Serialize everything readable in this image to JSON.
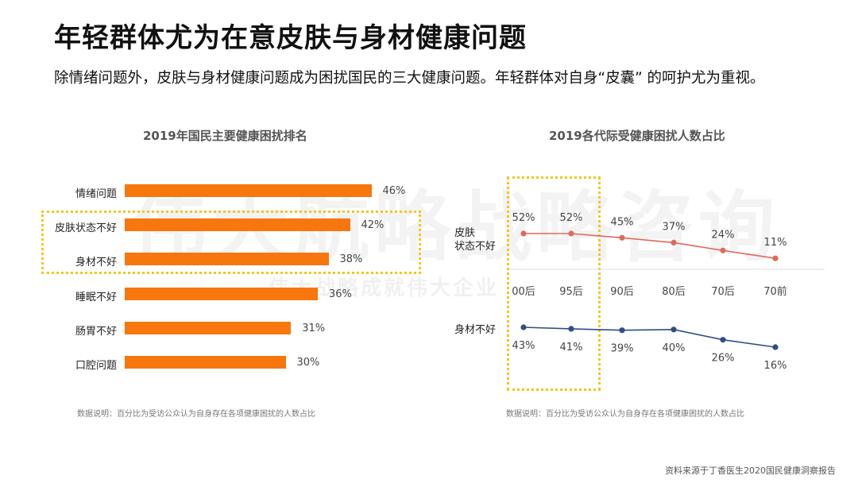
{
  "header": {
    "title": "年轻群体尤为在意皮肤与身材健康问题",
    "subtitle": "除情绪问题外，皮肤与身材健康问题成为困扰国民的三大健康问题。年轻群体对自身“皮囊” 的呵护尤为重视。"
  },
  "watermark": {
    "main": "伟大航略战略咨询",
    "sub": "伟大战略成就伟大企业"
  },
  "footer": {
    "source": "资料来源于丁香医生2020国民健康洞察报告"
  },
  "chart_data": [
    {
      "type": "bar",
      "orientation": "horizontal",
      "title": "2019年国民主要健康困扰排名",
      "categories": [
        "情绪问题",
        "皮肤状态不好",
        "身材不好",
        "睡眠不好",
        "肠胃不好",
        "口腔问题"
      ],
      "values": [
        46,
        42,
        38,
        36,
        31,
        30
      ],
      "value_labels": [
        "46%",
        "42%",
        "38%",
        "36%",
        "31%",
        "30%"
      ],
      "unit": "%",
      "highlighted": [
        "皮肤状态不好",
        "身材不好"
      ],
      "color": "#f7760e",
      "highlight_color": "#f5c518",
      "note": "数据说明：百分比为受访公众认为自身存在各项健康困扰的人数占比"
    },
    {
      "type": "line",
      "title": "2019各代际受健康困扰人数占比",
      "categories": [
        "00后",
        "95后",
        "90后",
        "80后",
        "70后",
        "70前"
      ],
      "highlighted": [
        "00后",
        "95后"
      ],
      "highlight_color": "#f5c518",
      "series": [
        {
          "name": "皮肤状态不好",
          "label_lines": [
            "皮肤",
            "状态不好"
          ],
          "values": [
            52,
            52,
            45,
            37,
            24,
            11
          ],
          "value_labels": [
            "52%",
            "52%",
            "45%",
            "37%",
            "24%",
            "11%"
          ],
          "color": "#e0695c"
        },
        {
          "name": "身材不好",
          "label_lines": [
            "身材不好"
          ],
          "values": [
            43,
            41,
            39,
            40,
            26,
            16
          ],
          "value_labels": [
            "43%",
            "41%",
            "39%",
            "40%",
            "26%",
            "16%"
          ],
          "color": "#2e4e8a"
        }
      ],
      "note": "数据说明：百分比为受访公众认为自身存在各项健康困扰的人数占比"
    }
  ]
}
